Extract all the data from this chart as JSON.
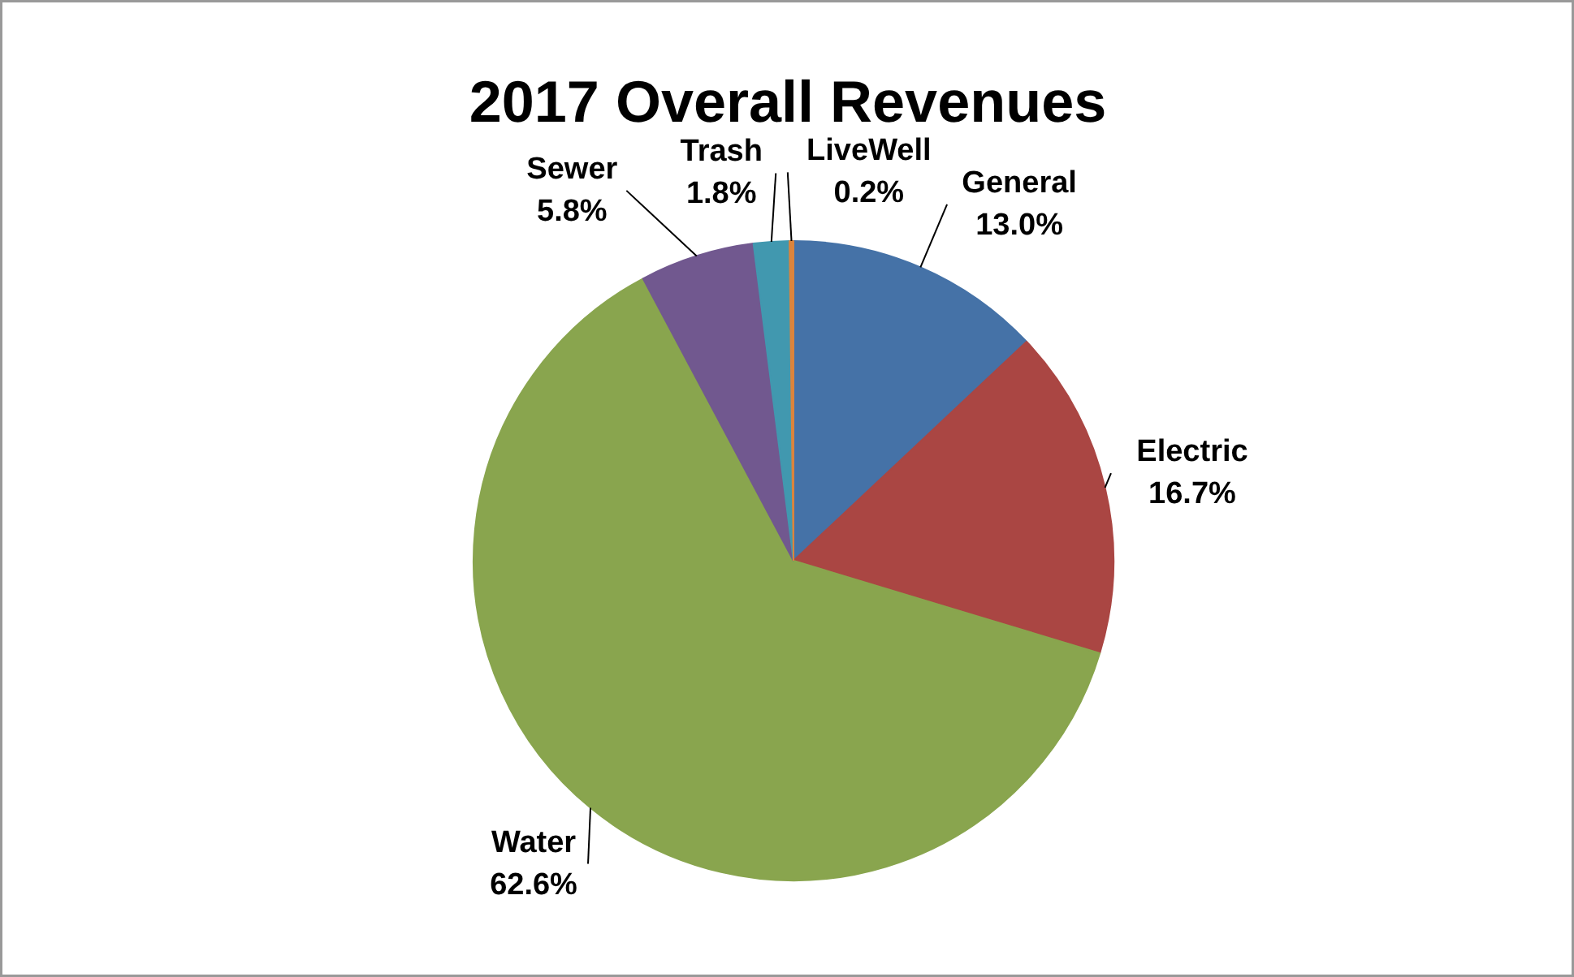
{
  "chart_data": {
    "type": "pie",
    "title": "2017 Overall Revenues",
    "categories": [
      "General",
      "Electric",
      "Water",
      "Sewer",
      "Trash",
      "LiveWell"
    ],
    "values": [
      13.0,
      16.7,
      62.6,
      5.8,
      1.8,
      0.2
    ],
    "value_labels": [
      "13.0%",
      "16.7%",
      "62.6%",
      "5.8%",
      "1.8%",
      "0.2%"
    ],
    "colors": [
      "#4572a7",
      "#aa4643",
      "#89a54e",
      "#71588f",
      "#4198af",
      "#db843d"
    ]
  }
}
